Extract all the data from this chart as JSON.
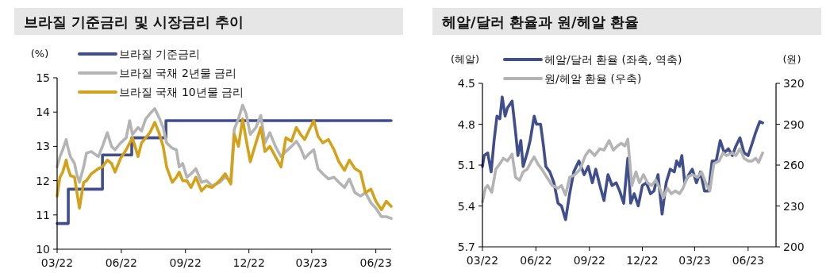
{
  "chart_data": [
    {
      "type": "line",
      "title": "브라질 기준금리 및 시장금리 추이",
      "ylabel": "(%)",
      "legend": "top",
      "xlim": [
        "2022-03-01",
        "2023-06-23"
      ],
      "ylim": [
        10,
        15
      ],
      "yticks": [
        10,
        11,
        12,
        13,
        14,
        15
      ],
      "xticks": [
        {
          "value": "2022-03-01",
          "label": "03/22"
        },
        {
          "value": "2022-06-01",
          "label": "06/22"
        },
        {
          "value": "2022-09-01",
          "label": "09/22"
        },
        {
          "value": "2022-12-01",
          "label": "12/22"
        },
        {
          "value": "2023-03-01",
          "label": "03/23"
        },
        {
          "value": "2023-06-01",
          "label": "06/23"
        }
      ],
      "series": [
        {
          "name": "브라질 기준금리",
          "type": "step",
          "color": "#404f8c",
          "x": [
            "2022-03-01",
            "2022-03-17",
            "2022-05-05",
            "2022-06-16",
            "2022-08-04",
            "2023-06-23"
          ],
          "values": [
            10.75,
            11.75,
            12.75,
            13.25,
            13.75,
            13.75
          ]
        },
        {
          "name": "브라질 국채 2년물 금리",
          "color": "#b4b4b4",
          "x": [
            "2022-03-01",
            "2022-03-05",
            "2022-03-09",
            "2022-03-14",
            "2022-03-16",
            "2022-03-20",
            "2022-03-26",
            "2022-03-29",
            "2022-04-02",
            "2022-04-08",
            "2022-04-12",
            "2022-04-19",
            "2022-04-29",
            "2022-05-05",
            "2022-05-12",
            "2022-05-18",
            "2022-05-23",
            "2022-05-31",
            "2022-06-08",
            "2022-06-13",
            "2022-06-17",
            "2022-06-25",
            "2022-06-30",
            "2022-07-06",
            "2022-07-12",
            "2022-07-19",
            "2022-07-25",
            "2022-07-31",
            "2022-08-05",
            "2022-08-13",
            "2022-08-19",
            "2022-08-23",
            "2022-08-28",
            "2022-09-03",
            "2022-09-09",
            "2022-09-16",
            "2022-09-24",
            "2022-10-01",
            "2022-10-09",
            "2022-10-20",
            "2022-10-28",
            "2022-11-05",
            "2022-11-10",
            "2022-11-16",
            "2022-11-22",
            "2022-11-27",
            "2022-12-03",
            "2022-12-11",
            "2022-12-18",
            "2022-12-24",
            "2022-12-31",
            "2023-01-08",
            "2023-01-16",
            "2023-01-23",
            "2023-01-31",
            "2023-02-07",
            "2023-02-13",
            "2023-02-19",
            "2023-02-26",
            "2023-03-04",
            "2023-03-10",
            "2023-03-17",
            "2023-03-25",
            "2023-04-02",
            "2023-04-09",
            "2023-04-17",
            "2023-04-24",
            "2023-05-02",
            "2023-05-10",
            "2023-05-17",
            "2023-05-25",
            "2023-06-01",
            "2023-06-09",
            "2023-06-16",
            "2023-06-23"
          ],
          "values": [
            12.4,
            12.7,
            12.9,
            13.2,
            13.0,
            12.7,
            12.5,
            12.2,
            11.95,
            12.4,
            12.8,
            12.85,
            12.7,
            13.0,
            13.4,
            13.0,
            12.9,
            13.1,
            13.25,
            13.75,
            13.35,
            13.55,
            13.45,
            13.8,
            13.95,
            14.1,
            13.85,
            13.55,
            13.1,
            12.95,
            12.9,
            12.4,
            12.5,
            12.1,
            12.2,
            12.35,
            11.95,
            12.0,
            11.85,
            11.95,
            12.1,
            12.0,
            13.5,
            13.8,
            14.2,
            13.95,
            13.35,
            13.55,
            13.9,
            13.1,
            13.4,
            13.0,
            12.7,
            12.85,
            13.0,
            13.15,
            12.95,
            12.65,
            12.8,
            12.9,
            12.35,
            12.2,
            12.05,
            12.1,
            11.95,
            11.8,
            12.05,
            11.65,
            11.55,
            11.65,
            11.35,
            11.2,
            10.95,
            10.95,
            10.9
          ]
        },
        {
          "name": "브라질 국채 10년물 금리",
          "color": "#d3a21a",
          "x": [
            "2022-03-01",
            "2022-03-05",
            "2022-03-09",
            "2022-03-14",
            "2022-03-16",
            "2022-03-20",
            "2022-03-26",
            "2022-03-29",
            "2022-04-02",
            "2022-04-08",
            "2022-04-12",
            "2022-04-19",
            "2022-04-29",
            "2022-05-05",
            "2022-05-12",
            "2022-05-18",
            "2022-05-23",
            "2022-05-31",
            "2022-06-08",
            "2022-06-13",
            "2022-06-17",
            "2022-06-25",
            "2022-06-30",
            "2022-07-06",
            "2022-07-12",
            "2022-07-19",
            "2022-07-25",
            "2022-07-31",
            "2022-08-05",
            "2022-08-13",
            "2022-08-19",
            "2022-08-23",
            "2022-08-28",
            "2022-09-03",
            "2022-09-09",
            "2022-09-16",
            "2022-09-24",
            "2022-10-01",
            "2022-10-09",
            "2022-10-20",
            "2022-10-28",
            "2022-11-05",
            "2022-11-10",
            "2022-11-16",
            "2022-11-22",
            "2022-11-27",
            "2022-12-03",
            "2022-12-11",
            "2022-12-18",
            "2022-12-24",
            "2022-12-31",
            "2023-01-08",
            "2023-01-16",
            "2023-01-23",
            "2023-01-31",
            "2023-02-07",
            "2023-02-13",
            "2023-02-19",
            "2023-02-26",
            "2023-03-04",
            "2023-03-10",
            "2023-03-17",
            "2023-03-25",
            "2023-04-02",
            "2023-04-09",
            "2023-04-17",
            "2023-04-24",
            "2023-05-02",
            "2023-05-10",
            "2023-05-17",
            "2023-05-25",
            "2023-06-01",
            "2023-06-09",
            "2023-06-16",
            "2023-06-23"
          ],
          "values": [
            11.55,
            12.1,
            12.25,
            12.6,
            12.4,
            12.15,
            12.1,
            11.7,
            11.2,
            11.95,
            12.0,
            12.2,
            12.35,
            12.4,
            12.6,
            12.5,
            12.25,
            12.65,
            12.9,
            13.1,
            13.25,
            12.7,
            13.1,
            13.25,
            13.4,
            13.7,
            13.4,
            13.0,
            12.4,
            11.95,
            12.1,
            12.25,
            12.0,
            12.0,
            11.8,
            12.1,
            11.7,
            11.85,
            11.8,
            12.0,
            12.2,
            11.9,
            13.35,
            13.0,
            13.8,
            13.2,
            12.55,
            13.1,
            13.55,
            12.85,
            13.0,
            12.7,
            12.4,
            13.25,
            13.15,
            13.55,
            13.35,
            13.2,
            13.5,
            13.75,
            13.3,
            13.1,
            13.2,
            12.9,
            12.55,
            12.3,
            12.6,
            12.35,
            12.25,
            11.65,
            11.75,
            11.4,
            11.15,
            11.4,
            11.25
          ]
        }
      ]
    },
    {
      "type": "line",
      "title": "헤알/달러 환율과 원/헤알 환율",
      "ylabel": "(헤알)",
      "y2label": "(원)",
      "legend": "top",
      "xlim": [
        "2022-03-01",
        "2023-07-19"
      ],
      "ylim": [
        5.7,
        4.5
      ],
      "yticks": [
        4.5,
        4.8,
        5.1,
        5.4,
        5.7
      ],
      "y2lim": [
        200,
        320
      ],
      "y2ticks": [
        200,
        230,
        260,
        290,
        320
      ],
      "xticks": [
        {
          "value": "2022-03-01",
          "label": "03/22"
        },
        {
          "value": "2022-06-01",
          "label": "06/22"
        },
        {
          "value": "2022-09-01",
          "label": "09/22"
        },
        {
          "value": "2022-12-01",
          "label": "12/22"
        },
        {
          "value": "2023-03-01",
          "label": "03/23"
        },
        {
          "value": "2023-06-01",
          "label": "06/23"
        }
      ],
      "series": [
        {
          "name": "헤알/달러 환율 (좌축, 역축)",
          "color": "#404f8c",
          "x": [
            "2022-03-01",
            "2022-03-04",
            "2022-03-10",
            "2022-03-16",
            "2022-03-21",
            "2022-03-26",
            "2022-03-31",
            "2022-04-04",
            "2022-04-09",
            "2022-04-13",
            "2022-04-21",
            "2022-04-27",
            "2022-05-01",
            "2022-05-06",
            "2022-05-10",
            "2022-05-17",
            "2022-05-22",
            "2022-05-29",
            "2022-06-02",
            "2022-06-09",
            "2022-06-14",
            "2022-06-18",
            "2022-06-25",
            "2022-07-02",
            "2022-07-09",
            "2022-07-15",
            "2022-07-22",
            "2022-07-29",
            "2022-08-05",
            "2022-08-14",
            "2022-08-23",
            "2022-08-30",
            "2022-09-06",
            "2022-09-12",
            "2022-09-19",
            "2022-09-26",
            "2022-10-03",
            "2022-10-10",
            "2022-10-17",
            "2022-10-23",
            "2022-10-30",
            "2022-11-06",
            "2022-11-11",
            "2022-11-17",
            "2022-11-24",
            "2022-12-01",
            "2022-12-08",
            "2022-12-15",
            "2022-12-21",
            "2022-12-28",
            "2023-01-04",
            "2023-01-11",
            "2023-01-18",
            "2023-01-25",
            "2023-01-29",
            "2023-02-03",
            "2023-02-07",
            "2023-02-12",
            "2023-02-19",
            "2023-02-25",
            "2023-03-04",
            "2023-03-11",
            "2023-03-18",
            "2023-03-25",
            "2023-03-31",
            "2023-04-07",
            "2023-04-14",
            "2023-04-21",
            "2023-04-28",
            "2023-05-05",
            "2023-05-11",
            "2023-05-18",
            "2023-05-25",
            "2023-06-01",
            "2023-06-08",
            "2023-06-14",
            "2023-06-21",
            "2023-06-26"
          ],
          "values": [
            5.11,
            5.03,
            5.01,
            5.15,
            4.92,
            4.74,
            4.76,
            4.6,
            4.74,
            4.68,
            4.63,
            4.86,
            5.03,
            4.92,
            5.11,
            5.01,
            4.92,
            4.74,
            4.8,
            4.8,
            4.96,
            5.11,
            5.15,
            5.23,
            5.38,
            5.4,
            5.5,
            5.31,
            5.15,
            5.07,
            5.17,
            5.11,
            5.23,
            5.13,
            5.25,
            5.36,
            5.17,
            5.25,
            5.23,
            5.29,
            5.38,
            5.05,
            5.38,
            5.31,
            5.4,
            5.25,
            5.23,
            5.31,
            5.29,
            5.17,
            5.46,
            5.23,
            5.13,
            5.15,
            5.07,
            5.11,
            5.03,
            5.23,
            5.17,
            5.13,
            5.23,
            5.15,
            5.29,
            5.29,
            5.07,
            5.07,
            4.92,
            5.01,
            4.98,
            5.03,
            4.96,
            4.9,
            5.01,
            5.03,
            4.94,
            4.86,
            4.78,
            4.79
          ]
        },
        {
          "name": "원/헤알 환율 (우축)",
          "color": "#b4b4b4",
          "axis": "y2",
          "x": [
            "2022-03-01",
            "2022-03-06",
            "2022-03-10",
            "2022-03-17",
            "2022-03-24",
            "2022-03-31",
            "2022-04-06",
            "2022-04-13",
            "2022-04-21",
            "2022-04-27",
            "2022-05-04",
            "2022-05-10",
            "2022-05-17",
            "2022-05-22",
            "2022-05-29",
            "2022-06-04",
            "2022-06-11",
            "2022-06-20",
            "2022-06-29",
            "2022-07-09",
            "2022-07-15",
            "2022-07-22",
            "2022-07-29",
            "2022-08-07",
            "2022-08-16",
            "2022-08-25",
            "2022-09-01",
            "2022-09-10",
            "2022-09-19",
            "2022-09-26",
            "2022-10-05",
            "2022-10-12",
            "2022-10-19",
            "2022-10-26",
            "2022-11-01",
            "2022-11-06",
            "2022-11-13",
            "2022-11-20",
            "2022-11-26",
            "2022-12-03",
            "2022-12-10",
            "2022-12-17",
            "2022-12-24",
            "2022-12-31",
            "2023-01-06",
            "2023-01-13",
            "2023-01-20",
            "2023-01-27",
            "2023-02-03",
            "2023-02-09",
            "2023-02-16",
            "2023-02-25",
            "2023-03-06",
            "2023-03-13",
            "2023-03-20",
            "2023-03-27",
            "2023-04-03",
            "2023-04-12",
            "2023-04-19",
            "2023-04-25",
            "2023-05-05",
            "2023-05-11",
            "2023-05-18",
            "2023-05-25",
            "2023-06-01",
            "2023-06-08",
            "2023-06-14",
            "2023-06-19",
            "2023-06-26"
          ],
          "values": [
            233,
            243,
            245,
            240,
            257,
            261,
            265,
            263,
            268,
            251,
            249,
            255,
            257,
            261,
            266,
            261,
            257,
            251,
            245,
            243,
            245,
            238,
            251,
            253,
            257,
            267,
            271,
            267,
            272,
            271,
            278,
            271,
            274,
            276,
            274,
            279,
            245,
            255,
            247,
            253,
            247,
            245,
            249,
            243,
            236,
            243,
            239,
            241,
            239,
            243,
            251,
            253,
            251,
            255,
            247,
            241,
            261,
            263,
            269,
            267,
            269,
            267,
            272,
            265,
            263,
            263,
            265,
            262,
            269
          ]
        }
      ]
    }
  ]
}
